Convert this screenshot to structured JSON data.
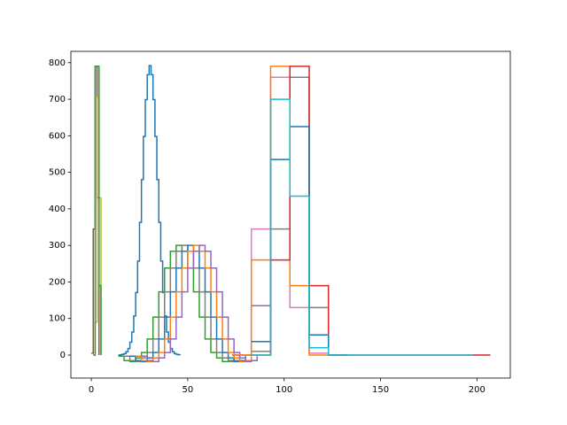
{
  "chart_data": {
    "type": "line",
    "drawstyle": "steps-post",
    "xlim": [
      -10.6,
      217.3
    ],
    "ylim": [
      -63,
      831
    ],
    "xticks": [
      0,
      50,
      100,
      150,
      200
    ],
    "yticks": [
      0,
      100,
      200,
      300,
      400,
      500,
      600,
      700,
      800
    ],
    "grid": false,
    "series": [
      {
        "color": "#1f77b4",
        "x": [
          14,
          15,
          16,
          17,
          18,
          19,
          20,
          21,
          22,
          23,
          24,
          25,
          26,
          27,
          28,
          29,
          30,
          31,
          32,
          33,
          34,
          35,
          36,
          37,
          38,
          39,
          40,
          41,
          42,
          43,
          44,
          45,
          46
        ],
        "values": [
          0,
          1,
          2,
          4,
          9,
          18,
          35,
          63,
          107,
          171,
          257,
          363,
          480,
          598,
          699,
          767,
          792,
          767,
          699,
          598,
          480,
          363,
          257,
          171,
          107,
          63,
          35,
          18,
          9,
          4,
          2,
          1,
          0
        ]
      },
      {
        "color": "#2ca02c",
        "x": [
          14,
          17,
          20,
          23,
          26,
          29,
          32,
          35,
          38,
          41,
          44,
          47,
          50,
          53,
          56,
          59,
          62,
          65,
          68,
          71,
          74
        ],
        "values": [
          -3,
          -15,
          -18,
          -8,
          7,
          44,
          104,
          173,
          238,
          284,
          300,
          284,
          238,
          173,
          104,
          44,
          7,
          -8,
          -18,
          -15,
          -3
        ]
      },
      {
        "color": "#7f7f7f",
        "x": [
          17,
          20,
          23,
          26,
          29,
          32,
          35,
          38,
          41,
          44,
          47,
          50,
          53,
          56,
          59,
          62,
          65,
          68,
          71,
          74,
          77
        ],
        "values": [
          -3,
          -15,
          -18,
          -8,
          7,
          44,
          104,
          173,
          238,
          284,
          300,
          284,
          238,
          173,
          104,
          44,
          7,
          -8,
          -18,
          -15,
          -3
        ]
      },
      {
        "color": "#1f77b4",
        "x": [
          20,
          23,
          26,
          29,
          32,
          35,
          38,
          41,
          44,
          47,
          50,
          53,
          56,
          59,
          62,
          65,
          68,
          71,
          74,
          77,
          80
        ],
        "values": [
          -3,
          -15,
          -18,
          -8,
          7,
          44,
          104,
          173,
          238,
          284,
          300,
          284,
          238,
          173,
          104,
          44,
          7,
          -8,
          -18,
          -15,
          -3
        ]
      },
      {
        "color": "#ff7f0e",
        "x": [
          23,
          26,
          29,
          32,
          35,
          38,
          41,
          44,
          47,
          50,
          53,
          56,
          59,
          62,
          65,
          68,
          71,
          74,
          77,
          80,
          83
        ],
        "values": [
          -3,
          -15,
          -18,
          -8,
          7,
          44,
          104,
          173,
          238,
          284,
          300,
          284,
          238,
          173,
          104,
          44,
          7,
          -8,
          -18,
          -15,
          -3
        ]
      },
      {
        "color": "#9467bd",
        "x": [
          26,
          29,
          32,
          35,
          38,
          41,
          44,
          47,
          50,
          53,
          56,
          59,
          62,
          65,
          68,
          71,
          74,
          77,
          80,
          83,
          86
        ],
        "values": [
          -3,
          -15,
          -18,
          -8,
          7,
          44,
          104,
          173,
          238,
          284,
          300,
          284,
          238,
          173,
          104,
          44,
          7,
          -8,
          -18,
          -15,
          -3
        ]
      },
      {
        "color": "#8c564b",
        "x": [
          0,
          1,
          2,
          3,
          4
        ],
        "values": [
          5,
          345,
          790,
          430,
          0
        ]
      },
      {
        "color": "#bcbd22",
        "x": [
          1,
          2,
          3,
          4,
          5
        ],
        "values": [
          0,
          90,
          705,
          430,
          0
        ]
      },
      {
        "color": "#2ca02c",
        "x": [
          1,
          2,
          3,
          4,
          5
        ],
        "values": [
          0,
          790,
          790,
          190,
          0
        ]
      },
      {
        "color": "#e377c2",
        "x": [
          73,
          83,
          93,
          103,
          113,
          123
        ],
        "values": [
          0,
          345,
          760,
          130,
          5,
          0
        ]
      },
      {
        "color": "#7f7f7f",
        "x": [
          83,
          93,
          103,
          113,
          123,
          133
        ],
        "values": [
          10,
          345,
          760,
          130,
          0,
          0
        ]
      },
      {
        "color": "#9467bd",
        "x": [
          73,
          83,
          93
        ],
        "values": [
          0,
          135,
          0
        ]
      },
      {
        "color": "#ff7f0e",
        "x": [
          73,
          83,
          93,
          103,
          113,
          123,
          133
        ],
        "values": [
          0,
          260,
          790,
          190,
          0,
          0,
          0
        ]
      },
      {
        "color": "#d62728",
        "x": [
          83,
          93,
          103,
          113,
          123,
          133,
          207
        ],
        "values": [
          0,
          260,
          790,
          190,
          0,
          0,
          0
        ]
      },
      {
        "color": "#1f77b4",
        "x": [
          83,
          93,
          103,
          113,
          123,
          133
        ],
        "values": [
          37,
          535,
          625,
          55,
          0,
          0
        ]
      },
      {
        "color": "#17becf",
        "x": [
          83,
          93,
          103,
          113,
          123,
          198
        ],
        "values": [
          0,
          700,
          435,
          20,
          0,
          0
        ]
      }
    ]
  }
}
